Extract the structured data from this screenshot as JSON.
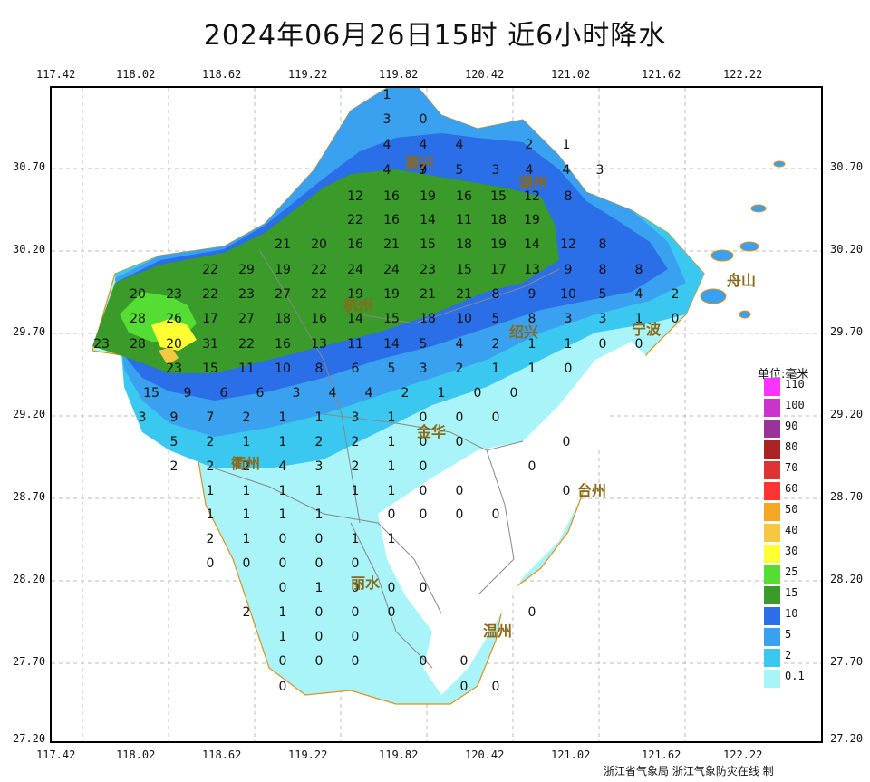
{
  "title": "2024年06月26日15时  近6小时降水",
  "x_ticks": [
    "117.42",
    "118.02",
    "118.62",
    "119.22",
    "119.82",
    "120.42",
    "121.02",
    "121.62",
    "122.22"
  ],
  "y_ticks": [
    "30.70",
    "30.20",
    "29.70",
    "29.20",
    "28.70",
    "28.20",
    "27.70",
    "27.20"
  ],
  "legend": {
    "title": "单位:毫米",
    "items": [
      {
        "label": "110",
        "color": "#ff33ff"
      },
      {
        "label": "100",
        "color": "#cc33cc"
      },
      {
        "label": "90",
        "color": "#993399"
      },
      {
        "label": "80",
        "color": "#aa2222"
      },
      {
        "label": "70",
        "color": "#dd3333"
      },
      {
        "label": "60",
        "color": "#ff3333"
      },
      {
        "label": "50",
        "color": "#f5a623"
      },
      {
        "label": "40",
        "color": "#f5c842"
      },
      {
        "label": "30",
        "color": "#ffff33"
      },
      {
        "label": "25",
        "color": "#55dd33"
      },
      {
        "label": "15",
        "color": "#3a9a2a"
      },
      {
        "label": "10",
        "color": "#2a6ee8"
      },
      {
        "label": "5",
        "color": "#3aa0f0"
      },
      {
        "label": "2",
        "color": "#3ac8f0"
      },
      {
        "label": "0.1",
        "color": "#a8f4f8"
      }
    ]
  },
  "cities": [
    "杭州",
    "绍兴",
    "宁波",
    "金华",
    "衢州",
    "台州",
    "丽水",
    "温州",
    "舟山",
    "湖州",
    "嘉兴"
  ],
  "footer": "浙江省气象局  浙江气象防灾在线 制",
  "stations": [
    [
      "1",
      0
    ],
    [
      "3",
      0
    ],
    [
      "0",
      0
    ],
    [
      "4",
      0
    ],
    [
      "4",
      0
    ],
    [
      "4",
      0
    ],
    [
      "2",
      0
    ],
    [
      "1",
      0
    ],
    [
      "4",
      0
    ],
    [
      "9",
      0
    ],
    [
      "7",
      0
    ],
    [
      "5",
      0
    ],
    [
      "3",
      0
    ],
    [
      "4",
      0
    ],
    [
      "4",
      0
    ],
    [
      "3",
      0
    ],
    [
      "12",
      0
    ],
    [
      "16",
      0
    ],
    [
      "19",
      0
    ],
    [
      "16",
      0
    ],
    [
      "15",
      0
    ],
    [
      "12",
      0
    ],
    [
      "8",
      0
    ],
    [
      "22",
      0
    ],
    [
      "16",
      0
    ],
    [
      "14",
      0
    ],
    [
      "11",
      0
    ],
    [
      "18",
      0
    ],
    [
      "19",
      0
    ],
    [
      "21",
      0
    ],
    [
      "20",
      0
    ],
    [
      "16",
      0
    ],
    [
      "21",
      0
    ],
    [
      "15",
      0
    ],
    [
      "18",
      0
    ],
    [
      "19",
      0
    ],
    [
      "14",
      0
    ],
    [
      "12",
      0
    ],
    [
      "8",
      0
    ],
    [
      "22",
      0
    ],
    [
      "29",
      0
    ],
    [
      "19",
      0
    ],
    [
      "22",
      0
    ],
    [
      "24",
      0
    ],
    [
      "24",
      0
    ],
    [
      "23",
      0
    ],
    [
      "15",
      0
    ],
    [
      "17",
      0
    ],
    [
      "13",
      0
    ],
    [
      "9",
      0
    ],
    [
      "8",
      0
    ],
    [
      "8",
      0
    ],
    [
      "20",
      0
    ],
    [
      "23",
      0
    ],
    [
      "22",
      0
    ],
    [
      "23",
      0
    ],
    [
      "27",
      0
    ],
    [
      "22",
      0
    ],
    [
      "19",
      0
    ],
    [
      "19",
      0
    ],
    [
      "21",
      0
    ],
    [
      "21",
      0
    ],
    [
      "8",
      0
    ],
    [
      "9",
      0
    ],
    [
      "10",
      0
    ],
    [
      "5",
      0
    ],
    [
      "4",
      0
    ],
    [
      "2",
      0
    ],
    [
      "28",
      0
    ],
    [
      "26",
      0
    ],
    [
      "17",
      0
    ],
    [
      "27",
      0
    ],
    [
      "18",
      0
    ],
    [
      "16",
      0
    ],
    [
      "14",
      0
    ],
    [
      "15",
      0
    ],
    [
      "18",
      0
    ],
    [
      "10",
      0
    ],
    [
      "5",
      0
    ],
    [
      "8",
      0
    ],
    [
      "3",
      0
    ],
    [
      "3",
      0
    ],
    [
      "1",
      0
    ],
    [
      "0",
      0
    ],
    [
      "23",
      0
    ],
    [
      "28",
      0
    ],
    [
      "20",
      0
    ],
    [
      "31",
      0
    ],
    [
      "22",
      0
    ],
    [
      "16",
      0
    ],
    [
      "13",
      0
    ],
    [
      "11",
      0
    ],
    [
      "14",
      0
    ],
    [
      "5",
      0
    ],
    [
      "4",
      0
    ],
    [
      "2",
      0
    ],
    [
      "1",
      0
    ],
    [
      "1",
      0
    ],
    [
      "0",
      0
    ],
    [
      "0",
      0
    ],
    [
      "23",
      0
    ],
    [
      "15",
      0
    ],
    [
      "11",
      0
    ],
    [
      "10",
      0
    ],
    [
      "8",
      0
    ],
    [
      "6",
      0
    ],
    [
      "5",
      0
    ],
    [
      "3",
      0
    ],
    [
      "2",
      0
    ],
    [
      "1",
      0
    ],
    [
      "1",
      0
    ],
    [
      "0",
      0
    ],
    [
      "15",
      0
    ],
    [
      "9",
      0
    ],
    [
      "6",
      0
    ],
    [
      "6",
      0
    ],
    [
      "3",
      0
    ],
    [
      "4",
      0
    ],
    [
      "4",
      0
    ],
    [
      "2",
      0
    ],
    [
      "1",
      0
    ],
    [
      "0",
      0
    ],
    [
      "0",
      0
    ],
    [
      "3",
      0
    ],
    [
      "9",
      0
    ],
    [
      "7",
      0
    ],
    [
      "2",
      0
    ],
    [
      "1",
      0
    ],
    [
      "1",
      0
    ],
    [
      "3",
      0
    ],
    [
      "1",
      0
    ],
    [
      "0",
      0
    ],
    [
      "0",
      0
    ],
    [
      "0",
      0
    ],
    [
      "5",
      0
    ],
    [
      "2",
      0
    ],
    [
      "1",
      0
    ],
    [
      "1",
      0
    ],
    [
      "2",
      0
    ],
    [
      "2",
      0
    ],
    [
      "1",
      0
    ],
    [
      "0",
      0
    ],
    [
      "0",
      0
    ],
    [
      "0",
      0
    ],
    [
      "2",
      0
    ],
    [
      "2",
      0
    ],
    [
      "2",
      0
    ],
    [
      "4",
      0
    ],
    [
      "3",
      0
    ],
    [
      "2",
      0
    ],
    [
      "1",
      0
    ],
    [
      "0",
      0
    ],
    [
      "0",
      0
    ],
    [
      "1",
      0
    ],
    [
      "1",
      0
    ],
    [
      "1",
      0
    ],
    [
      "1",
      0
    ],
    [
      "1",
      0
    ],
    [
      "1",
      0
    ],
    [
      "0",
      0
    ],
    [
      "0",
      0
    ],
    [
      "0",
      0
    ],
    [
      "1",
      0
    ],
    [
      "1",
      0
    ],
    [
      "1",
      0
    ],
    [
      "1",
      0
    ],
    [
      "0",
      0
    ],
    [
      "0",
      0
    ],
    [
      "0",
      0
    ],
    [
      "0",
      0
    ],
    [
      "2",
      0
    ],
    [
      "1",
      0
    ],
    [
      "0",
      0
    ],
    [
      "0",
      0
    ],
    [
      "1",
      0
    ],
    [
      "1",
      0
    ],
    [
      "0",
      0
    ],
    [
      "0",
      0
    ],
    [
      "0",
      0
    ],
    [
      "0",
      0
    ],
    [
      "0",
      0
    ],
    [
      "0",
      0
    ],
    [
      "1",
      0
    ],
    [
      "0",
      0
    ],
    [
      "0",
      0
    ],
    [
      "0",
      0
    ],
    [
      "2",
      0
    ],
    [
      "1",
      0
    ],
    [
      "0",
      0
    ],
    [
      "0",
      0
    ],
    [
      "0",
      0
    ],
    [
      "0",
      0
    ],
    [
      "1",
      0
    ],
    [
      "0",
      0
    ],
    [
      "0",
      0
    ],
    [
      "0",
      0
    ],
    [
      "0",
      0
    ],
    [
      "0",
      0
    ],
    [
      "0",
      0
    ],
    [
      "0",
      0
    ],
    [
      "0",
      0
    ],
    [
      "0",
      0
    ],
    [
      "0",
      0
    ]
  ]
}
